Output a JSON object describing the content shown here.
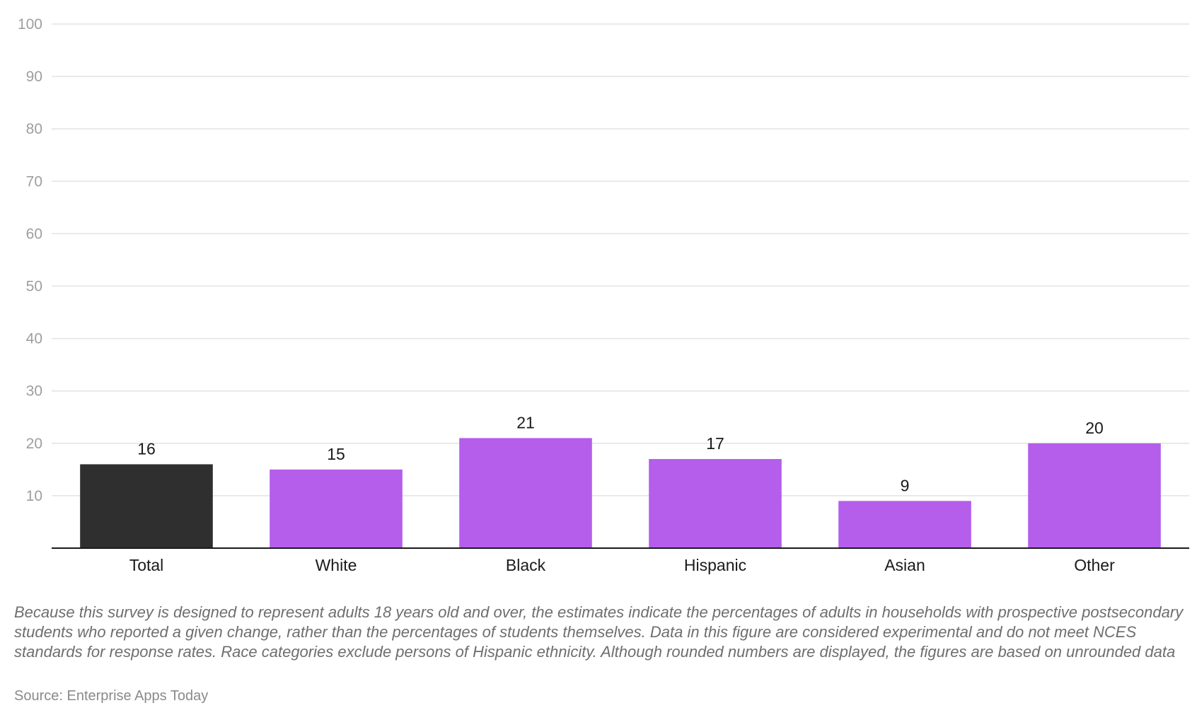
{
  "chart_data": {
    "type": "bar",
    "categories": [
      "Total",
      "White",
      "Black",
      "Hispanic",
      "Asian",
      "Other"
    ],
    "values": [
      16,
      15,
      21,
      17,
      9,
      20
    ],
    "value_labels": [
      "16",
      "15",
      "21",
      "17",
      "9",
      "20"
    ],
    "bar_colors": [
      "#2f2f2f",
      "#b45eeb",
      "#b45eeb",
      "#b45eeb",
      "#b45eeb",
      "#b45eeb"
    ],
    "ylim": [
      0,
      100
    ],
    "y_ticks": [
      10,
      20,
      30,
      40,
      50,
      60,
      70,
      80,
      90,
      100
    ],
    "y_tick_labels": [
      "10",
      "20",
      "30",
      "40",
      "50",
      "60",
      "70",
      "80",
      "90",
      "100"
    ],
    "grid": true,
    "title": "",
    "xlabel": "",
    "ylabel": ""
  },
  "footnote": "Because this survey is designed to represent adults 18 years old and over, the estimates indicate the percentages of adults in households with prospective postsecondary students who reported a given change, rather than the percentages of students themselves. Data in this figure are considered experimental and do not meet NCES standards for response rates. Race categories exclude persons of Hispanic ethnicity. Although rounded numbers are displayed, the figures are based on unrounded data",
  "source": "Source: Enterprise Apps Today"
}
